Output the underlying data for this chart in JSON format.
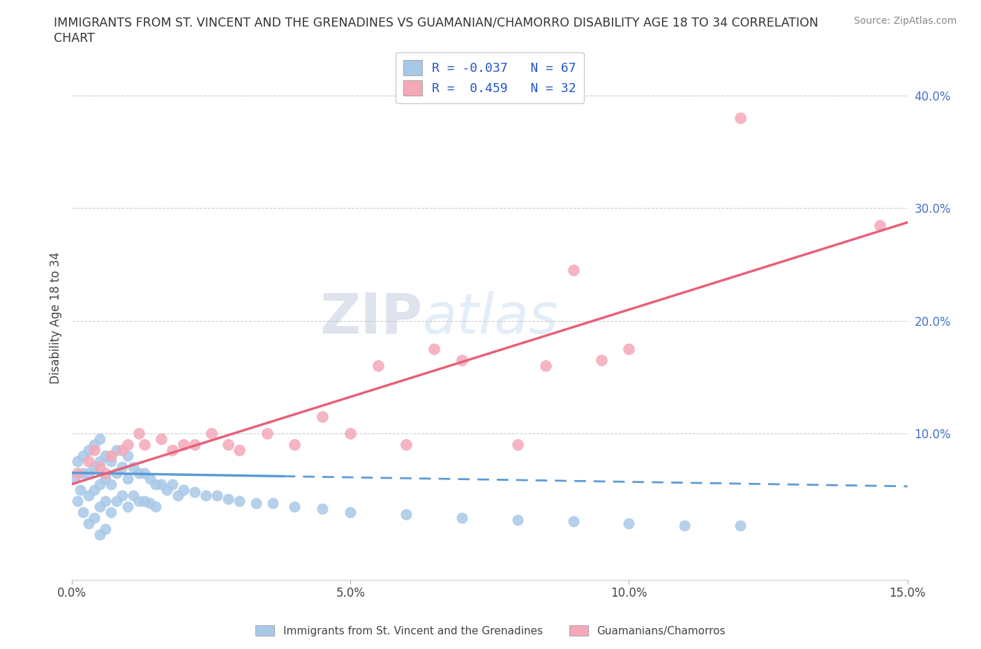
{
  "title_line1": "IMMIGRANTS FROM ST. VINCENT AND THE GRENADINES VS GUAMANIAN/CHAMORRO DISABILITY AGE 18 TO 34 CORRELATION",
  "title_line2": "CHART",
  "source": "Source: ZipAtlas.com",
  "ylabel": "Disability Age 18 to 34",
  "xlim": [
    0.0,
    0.15
  ],
  "ylim": [
    -0.03,
    0.435
  ],
  "xticks": [
    0.0,
    0.05,
    0.1,
    0.15
  ],
  "xtick_labels": [
    "0.0%",
    "5.0%",
    "10.0%",
    "15.0%"
  ],
  "yticks": [
    0.1,
    0.2,
    0.3,
    0.4
  ],
  "ytick_labels": [
    "10.0%",
    "20.0%",
    "30.0%",
    "40.0%"
  ],
  "blue_R": -0.037,
  "blue_N": 67,
  "pink_R": 0.459,
  "pink_N": 32,
  "blue_color": "#a8c8e8",
  "pink_color": "#f4a8b8",
  "blue_line_color": "#5b9bd5",
  "pink_line_color": "#e8607a",
  "legend_label_blue": "Immigrants from St. Vincent and the Grenadines",
  "legend_label_pink": "Guamanians/Chamorros",
  "watermark_zip": "ZIP",
  "watermark_atlas": "atlas",
  "background_color": "#ffffff",
  "blue_scatter_x": [
    0.0005,
    0.001,
    0.001,
    0.0015,
    0.002,
    0.002,
    0.002,
    0.003,
    0.003,
    0.003,
    0.003,
    0.004,
    0.004,
    0.004,
    0.004,
    0.005,
    0.005,
    0.005,
    0.005,
    0.005,
    0.006,
    0.006,
    0.006,
    0.006,
    0.007,
    0.007,
    0.007,
    0.008,
    0.008,
    0.008,
    0.009,
    0.009,
    0.01,
    0.01,
    0.01,
    0.011,
    0.011,
    0.012,
    0.012,
    0.013,
    0.013,
    0.014,
    0.014,
    0.015,
    0.015,
    0.016,
    0.017,
    0.018,
    0.019,
    0.02,
    0.022,
    0.024,
    0.026,
    0.028,
    0.03,
    0.033,
    0.036,
    0.04,
    0.045,
    0.05,
    0.06,
    0.07,
    0.08,
    0.09,
    0.1,
    0.11,
    0.12
  ],
  "blue_scatter_y": [
    0.06,
    0.075,
    0.04,
    0.05,
    0.08,
    0.065,
    0.03,
    0.085,
    0.065,
    0.045,
    0.02,
    0.09,
    0.07,
    0.05,
    0.025,
    0.095,
    0.075,
    0.055,
    0.035,
    0.01,
    0.08,
    0.06,
    0.04,
    0.015,
    0.075,
    0.055,
    0.03,
    0.085,
    0.065,
    0.04,
    0.07,
    0.045,
    0.08,
    0.06,
    0.035,
    0.07,
    0.045,
    0.065,
    0.04,
    0.065,
    0.04,
    0.06,
    0.038,
    0.055,
    0.035,
    0.055,
    0.05,
    0.055,
    0.045,
    0.05,
    0.048,
    0.045,
    0.045,
    0.042,
    0.04,
    0.038,
    0.038,
    0.035,
    0.033,
    0.03,
    0.028,
    0.025,
    0.023,
    0.022,
    0.02,
    0.018,
    0.018
  ],
  "pink_scatter_x": [
    0.001,
    0.003,
    0.004,
    0.005,
    0.006,
    0.007,
    0.009,
    0.01,
    0.012,
    0.013,
    0.016,
    0.018,
    0.02,
    0.022,
    0.025,
    0.028,
    0.03,
    0.035,
    0.04,
    0.045,
    0.05,
    0.055,
    0.06,
    0.065,
    0.07,
    0.08,
    0.085,
    0.09,
    0.095,
    0.1,
    0.12,
    0.145
  ],
  "pink_scatter_y": [
    0.065,
    0.075,
    0.085,
    0.07,
    0.065,
    0.08,
    0.085,
    0.09,
    0.1,
    0.09,
    0.095,
    0.085,
    0.09,
    0.09,
    0.1,
    0.09,
    0.085,
    0.1,
    0.09,
    0.115,
    0.1,
    0.16,
    0.09,
    0.175,
    0.165,
    0.09,
    0.16,
    0.245,
    0.165,
    0.175,
    0.38,
    0.285
  ],
  "blue_trendline_x": [
    0.0,
    0.04,
    0.04,
    0.15
  ],
  "blue_trendline_intercept": 0.065,
  "blue_trendline_slope": -0.08,
  "pink_trendline_intercept": 0.055,
  "pink_trendline_slope": 1.55
}
